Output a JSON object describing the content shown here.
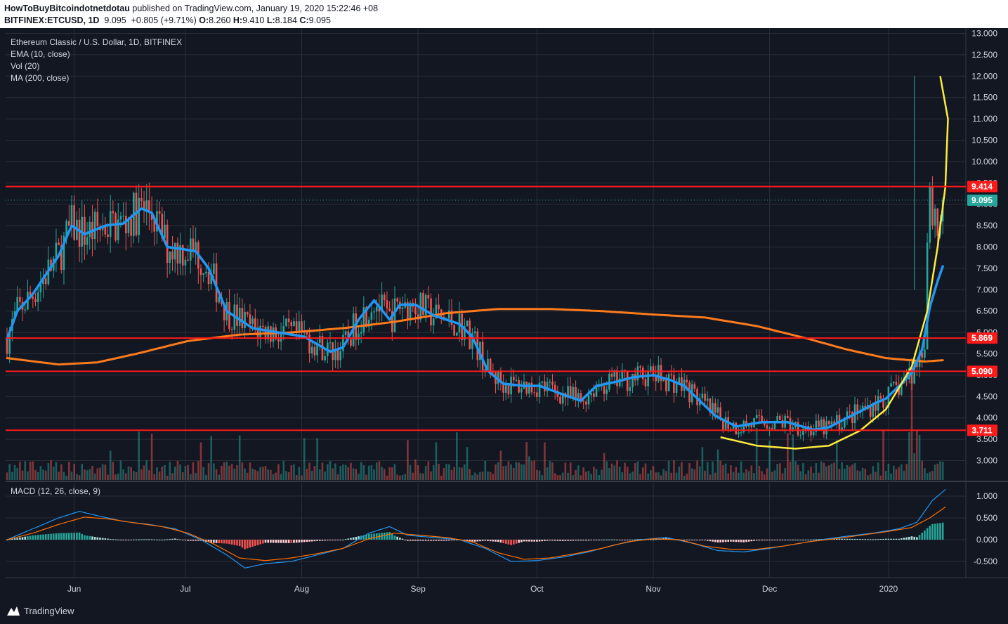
{
  "header": {
    "author": "HowToBuyBitcoindotnetdotau",
    "published": "published on TradingView.com, January 19, 2020 15:22:46 +08",
    "symbol": "BITFINEX:ETCUSD, 1D",
    "price": "9.095",
    "change": "+0.805 (+9.71%)",
    "ohlc_o_label": "O:",
    "ohlc_o": "8.260",
    "ohlc_h_label": "H:",
    "ohlc_h": "9.410",
    "ohlc_l_label": "L:",
    "ohlc_l": "8.184",
    "ohlc_c_label": "C:",
    "ohlc_c": "9.095"
  },
  "legend": {
    "title": "Ethereum Classic / U.S. Dollar, 1D, BITFINEX",
    "ema": "EMA (10, close)",
    "vol": "Vol (20)",
    "ma": "MA (200, close)",
    "macd": "MACD (12, 26, close, 9)"
  },
  "footer": {
    "brand": "TradingView"
  },
  "colors": {
    "background": "#131722",
    "grid": "#2a2e39",
    "up": "#26a69a",
    "down": "#ef5350",
    "ema": "#2196f3",
    "ma": "#ff7b1c",
    "level": "#ff1a1a",
    "curve": "#ffeb3b",
    "macd_line": "#2196f3",
    "signal_line": "#ff6d00"
  },
  "chart_data": {
    "type": "candlestick",
    "title": "Ethereum Classic / U.S. Dollar, 1D, BITFINEX",
    "x_labels": [
      "Jun",
      "Jul",
      "Aug",
      "Sep",
      "Oct",
      "Nov",
      "Dec",
      "2020"
    ],
    "price_axis": {
      "ylim": [
        2.6,
        13.0
      ],
      "ticks": [
        "13.000",
        "12.500",
        "12.000",
        "11.500",
        "11.000",
        "10.500",
        "10.000",
        "9.500",
        "9.000",
        "8.500",
        "8.000",
        "7.500",
        "7.000",
        "6.500",
        "6.000",
        "5.500",
        "5.000",
        "4.500",
        "4.000",
        "3.500",
        "3.000"
      ]
    },
    "horizontal_levels": [
      "9.414",
      "5.869",
      "5.090",
      "3.711"
    ],
    "last_price": "9.095",
    "ema_10": [
      [
        0,
        5.85
      ],
      [
        4,
        6.5
      ],
      [
        10,
        6.9
      ],
      [
        20,
        7.8
      ],
      [
        25,
        8.5
      ],
      [
        30,
        8.3
      ],
      [
        38,
        8.5
      ],
      [
        45,
        8.55
      ],
      [
        52,
        8.9
      ],
      [
        56,
        8.8
      ],
      [
        62,
        8.0
      ],
      [
        68,
        7.95
      ],
      [
        73,
        7.9
      ],
      [
        78,
        7.5
      ],
      [
        85,
        6.5
      ],
      [
        95,
        6.1
      ],
      [
        105,
        6.0
      ],
      [
        115,
        5.9
      ],
      [
        125,
        5.55
      ],
      [
        130,
        5.65
      ],
      [
        136,
        6.3
      ],
      [
        142,
        6.75
      ],
      [
        148,
        6.3
      ],
      [
        152,
        6.65
      ],
      [
        158,
        6.65
      ],
      [
        165,
        6.4
      ],
      [
        175,
        6.2
      ],
      [
        180,
        5.9
      ],
      [
        186,
        5.1
      ],
      [
        192,
        4.8
      ],
      [
        200,
        4.75
      ],
      [
        206,
        4.75
      ],
      [
        215,
        4.55
      ],
      [
        222,
        4.4
      ],
      [
        228,
        4.75
      ],
      [
        236,
        4.85
      ],
      [
        242,
        4.95
      ],
      [
        250,
        5.0
      ],
      [
        256,
        4.9
      ],
      [
        262,
        4.75
      ],
      [
        268,
        4.4
      ],
      [
        274,
        4.05
      ],
      [
        282,
        3.8
      ],
      [
        292,
        3.9
      ],
      [
        302,
        3.9
      ],
      [
        312,
        3.72
      ],
      [
        318,
        3.78
      ],
      [
        324,
        3.97
      ],
      [
        330,
        4.15
      ],
      [
        336,
        4.35
      ],
      [
        340,
        4.45
      ],
      [
        346,
        4.8
      ],
      [
        350,
        5.05
      ],
      [
        354,
        5.6
      ],
      [
        357,
        6.6
      ],
      [
        360,
        7.2
      ],
      [
        362,
        7.55
      ]
    ],
    "ma_200": [
      [
        0,
        5.4
      ],
      [
        20,
        5.25
      ],
      [
        35,
        5.3
      ],
      [
        50,
        5.5
      ],
      [
        70,
        5.8
      ],
      [
        90,
        5.95
      ],
      [
        110,
        6.0
      ],
      [
        130,
        6.1
      ],
      [
        150,
        6.25
      ],
      [
        170,
        6.45
      ],
      [
        190,
        6.55
      ],
      [
        210,
        6.55
      ],
      [
        230,
        6.5
      ],
      [
        250,
        6.42
      ],
      [
        270,
        6.35
      ],
      [
        290,
        6.15
      ],
      [
        310,
        5.85
      ],
      [
        325,
        5.6
      ],
      [
        340,
        5.4
      ],
      [
        355,
        5.32
      ],
      [
        362,
        5.35
      ]
    ],
    "curve_annotation": [
      [
        276,
        3.55
      ],
      [
        290,
        3.35
      ],
      [
        305,
        3.28
      ],
      [
        318,
        3.35
      ],
      [
        330,
        3.7
      ],
      [
        340,
        4.2
      ],
      [
        350,
        5.2
      ],
      [
        356,
        6.5
      ],
      [
        360,
        8.0
      ],
      [
        363,
        9.4
      ],
      [
        364,
        11.0
      ],
      [
        361,
        12.0
      ]
    ],
    "candle_count": 363,
    "macd_axis": {
      "ylim": [
        -0.75,
        1.25
      ],
      "ticks": [
        "1.000",
        "0.500",
        "0.000",
        "-0.500"
      ]
    },
    "macd_line": [
      [
        0,
        0.0
      ],
      [
        10,
        0.25
      ],
      [
        20,
        0.5
      ],
      [
        28,
        0.65
      ],
      [
        35,
        0.55
      ],
      [
        45,
        0.42
      ],
      [
        55,
        0.35
      ],
      [
        65,
        0.25
      ],
      [
        75,
        0.0
      ],
      [
        85,
        -0.35
      ],
      [
        92,
        -0.65
      ],
      [
        100,
        -0.55
      ],
      [
        110,
        -0.5
      ],
      [
        120,
        -0.35
      ],
      [
        130,
        -0.2
      ],
      [
        140,
        0.15
      ],
      [
        148,
        0.3
      ],
      [
        155,
        0.1
      ],
      [
        165,
        0.05
      ],
      [
        175,
        0.0
      ],
      [
        185,
        -0.2
      ],
      [
        195,
        -0.5
      ],
      [
        205,
        -0.48
      ],
      [
        215,
        -0.4
      ],
      [
        225,
        -0.28
      ],
      [
        235,
        -0.12
      ],
      [
        245,
        0.0
      ],
      [
        255,
        0.05
      ],
      [
        265,
        -0.08
      ],
      [
        275,
        -0.25
      ],
      [
        285,
        -0.28
      ],
      [
        295,
        -0.2
      ],
      [
        305,
        -0.1
      ],
      [
        315,
        0.0
      ],
      [
        325,
        0.08
      ],
      [
        335,
        0.15
      ],
      [
        345,
        0.25
      ],
      [
        352,
        0.4
      ],
      [
        358,
        0.9
      ],
      [
        363,
        1.15
      ]
    ],
    "signal_line": [
      [
        0,
        0.0
      ],
      [
        10,
        0.15
      ],
      [
        20,
        0.35
      ],
      [
        30,
        0.52
      ],
      [
        40,
        0.47
      ],
      [
        50,
        0.38
      ],
      [
        60,
        0.3
      ],
      [
        70,
        0.15
      ],
      [
        80,
        -0.1
      ],
      [
        90,
        -0.42
      ],
      [
        100,
        -0.48
      ],
      [
        110,
        -0.42
      ],
      [
        120,
        -0.32
      ],
      [
        130,
        -0.2
      ],
      [
        140,
        0.02
      ],
      [
        150,
        0.15
      ],
      [
        160,
        0.1
      ],
      [
        170,
        0.05
      ],
      [
        180,
        -0.05
      ],
      [
        190,
        -0.3
      ],
      [
        200,
        -0.45
      ],
      [
        210,
        -0.42
      ],
      [
        220,
        -0.32
      ],
      [
        230,
        -0.2
      ],
      [
        240,
        -0.05
      ],
      [
        250,
        0.02
      ],
      [
        260,
        0.0
      ],
      [
        270,
        -0.15
      ],
      [
        280,
        -0.22
      ],
      [
        290,
        -0.22
      ],
      [
        300,
        -0.15
      ],
      [
        310,
        -0.05
      ],
      [
        320,
        0.02
      ],
      [
        330,
        0.1
      ],
      [
        340,
        0.18
      ],
      [
        350,
        0.28
      ],
      [
        357,
        0.5
      ],
      [
        363,
        0.75
      ]
    ]
  }
}
